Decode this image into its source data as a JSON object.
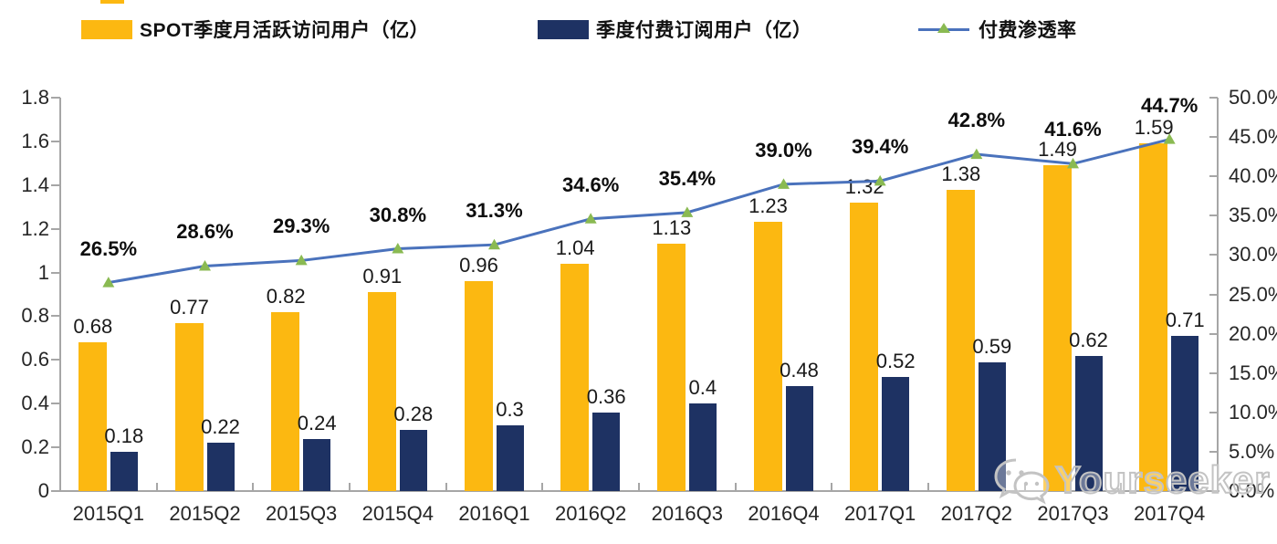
{
  "legend": {
    "items": [
      {
        "label": "SPOT季度月活跃访问用户（亿）",
        "type": "bar",
        "color": "#FCB811"
      },
      {
        "label": "季度付费订阅用户（亿）",
        "type": "bar",
        "color": "#1E3263"
      },
      {
        "label": "付费渗透率",
        "type": "line",
        "color": "#4A72BC",
        "marker_color": "#8ABA52"
      }
    ]
  },
  "watermark": {
    "text": "Yourseeker",
    "icon": "wechat-icon"
  },
  "chart_data": {
    "type": "bar",
    "subtype": "grouped-bars-with-line-overlay",
    "categories": [
      "2015Q1",
      "2015Q2",
      "2015Q3",
      "2015Q4",
      "2016Q1",
      "2016Q2",
      "2016Q3",
      "2016Q4",
      "2017Q1",
      "2017Q2",
      "2017Q3",
      "2017Q4"
    ],
    "series": [
      {
        "name": "SPOT季度月活跃访问用户（亿）",
        "type": "bar",
        "axis": "left",
        "color": "#FCB811",
        "values": [
          0.68,
          0.77,
          0.82,
          0.91,
          0.96,
          1.04,
          1.13,
          1.23,
          1.32,
          1.38,
          1.49,
          1.59
        ],
        "labels": [
          "0.68",
          "0.77",
          "0.82",
          "0.91",
          "0.96",
          "1.04",
          "1.13",
          "1.23",
          "1.32",
          "1.38",
          "1.49",
          "1.59"
        ]
      },
      {
        "name": "季度付费订阅用户（亿）",
        "type": "bar",
        "axis": "left",
        "color": "#1E3263",
        "values": [
          0.18,
          0.22,
          0.24,
          0.28,
          0.3,
          0.36,
          0.4,
          0.48,
          0.52,
          0.59,
          0.62,
          0.71
        ],
        "labels": [
          "0.18",
          "0.22",
          "0.24",
          "0.28",
          "0.3",
          "0.36",
          "0.4",
          "0.48",
          "0.52",
          "0.59",
          "0.62",
          "0.71"
        ]
      },
      {
        "name": "付费渗透率",
        "type": "line",
        "axis": "right",
        "color": "#4A72BC",
        "marker": "triangle",
        "marker_color": "#8ABA52",
        "values": [
          26.5,
          28.6,
          29.3,
          30.8,
          31.3,
          34.6,
          35.4,
          39.0,
          39.4,
          42.8,
          41.6,
          44.7
        ],
        "labels": [
          "26.5%",
          "28.6%",
          "29.3%",
          "30.8%",
          "31.3%",
          "34.6%",
          "35.4%",
          "39.0%",
          "39.4%",
          "42.8%",
          "41.6%",
          "44.7%"
        ]
      }
    ],
    "left_axis": {
      "min": 0,
      "max": 1.8,
      "ticks": [
        "1.8",
        "1.6",
        "1.4",
        "1.2",
        "1",
        "0.8",
        "0.6",
        "0.4",
        "0.2",
        "0"
      ]
    },
    "right_axis": {
      "min": 0,
      "max": 50,
      "ticks": [
        "50.0%",
        "45.0%",
        "40.0%",
        "35.0%",
        "30.0%",
        "25.0%",
        "20.0%",
        "15.0%",
        "10.0%",
        "5.0%",
        "0.0%"
      ]
    },
    "title": "",
    "xlabel": "",
    "ylabel": "",
    "grid": false,
    "legend_position": "top",
    "axis_color": "#a6a6a6"
  }
}
